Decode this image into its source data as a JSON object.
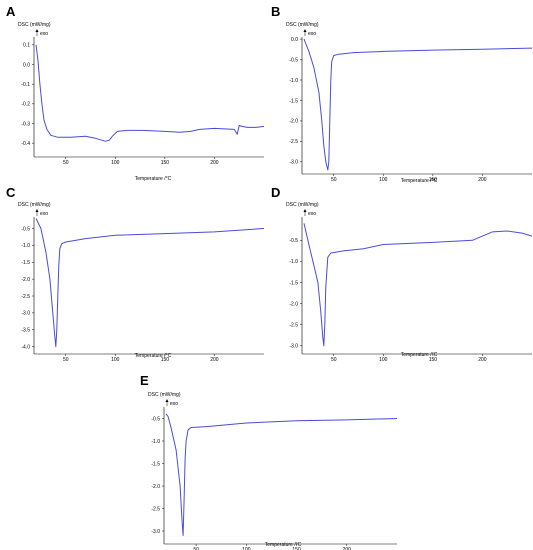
{
  "chart_data": [
    {
      "type": "line",
      "panel": "A",
      "ylabel": "DSC (mW/mg)",
      "exo_label": "exo",
      "xlabel": "Temperature /°C",
      "xlim": [
        18,
        250
      ],
      "ylim": [
        -0.45,
        0.15
      ],
      "xticks": [
        50,
        100,
        150,
        200
      ],
      "yticks": [
        0.1,
        0.0,
        -0.1,
        -0.2,
        -0.3,
        -0.4
      ],
      "ytick_labels": [
        "0.1",
        "0.0",
        "-0.1",
        "-0.2",
        "-0.3",
        "-0.4"
      ],
      "series": [
        {
          "x": [
            20,
            22,
            24,
            26,
            28,
            31,
            35,
            42,
            55,
            70,
            80,
            90,
            94,
            97,
            102,
            112,
            128,
            150,
            165,
            176,
            185,
            200,
            220,
            223,
            225,
            228,
            233,
            242,
            250
          ],
          "y": [
            0.1,
            0.02,
            -0.1,
            -0.2,
            -0.28,
            -0.33,
            -0.36,
            -0.37,
            -0.37,
            -0.365,
            -0.375,
            -0.39,
            -0.385,
            -0.365,
            -0.34,
            -0.335,
            -0.335,
            -0.34,
            -0.345,
            -0.34,
            -0.33,
            -0.325,
            -0.33,
            -0.355,
            -0.31,
            -0.315,
            -0.32,
            -0.32,
            -0.315
          ]
        }
      ]
    },
    {
      "type": "line",
      "panel": "B",
      "ylabel": "DSC (mW/mg)",
      "exo_label": "exo",
      "xlabel": "Temperature /°C",
      "xlim": [
        18,
        250
      ],
      "ylim": [
        -3.2,
        0.1
      ],
      "xticks": [
        50,
        100,
        150,
        200
      ],
      "yticks": [
        0.0,
        -0.5,
        -1.0,
        -1.5,
        -2.0,
        -2.5,
        -3.0
      ],
      "ytick_labels": [
        "0.0",
        "-0.5",
        "-1.0",
        "-1.5",
        "-2.0",
        "-2.5",
        "-3.0"
      ],
      "series": [
        {
          "x": [
            20,
            25,
            30,
            35,
            38,
            40,
            42,
            44,
            45,
            46,
            47,
            48,
            50,
            55,
            70,
            100,
            150,
            200,
            250
          ],
          "y": [
            0.0,
            -0.3,
            -0.7,
            -1.3,
            -2.0,
            -2.6,
            -3.0,
            -3.2,
            -3.0,
            -2.0,
            -1.0,
            -0.55,
            -0.4,
            -0.37,
            -0.33,
            -0.3,
            -0.27,
            -0.25,
            -0.22
          ]
        }
      ]
    },
    {
      "type": "line",
      "panel": "C",
      "ylabel": "DSC (mW/mg)",
      "exo_label": "exo",
      "xlabel": "Temperature /°C",
      "xlim": [
        18,
        250
      ],
      "ylim": [
        -4.1,
        -0.1
      ],
      "xticks": [
        50,
        100,
        150,
        200
      ],
      "yticks": [
        -0.5,
        -1.0,
        -1.5,
        -2.0,
        -2.5,
        -3.0,
        -3.5,
        -4.0
      ],
      "ytick_labels": [
        "-0.5",
        "-1.0",
        "-1.5",
        "-2.0",
        "-2.5",
        "-3.0",
        "-3.5",
        "-4.0"
      ],
      "series": [
        {
          "x": [
            20,
            25,
            30,
            34,
            37,
            39,
            40,
            41,
            42,
            43,
            44,
            46,
            50,
            70,
            100,
            150,
            200,
            250
          ],
          "y": [
            -0.2,
            -0.5,
            -1.2,
            -2.0,
            -3.0,
            -3.7,
            -4.0,
            -3.5,
            -2.5,
            -1.6,
            -1.1,
            -0.95,
            -0.9,
            -0.8,
            -0.7,
            -0.65,
            -0.6,
            -0.5
          ]
        }
      ]
    },
    {
      "type": "line",
      "panel": "D",
      "ylabel": "DSC (mW/mg)",
      "exo_label": "exo",
      "xlabel": "Temperature /°C",
      "xlim": [
        18,
        250
      ],
      "ylim": [
        -3.1,
        0.1
      ],
      "xticks": [
        50,
        100,
        150,
        200
      ],
      "yticks": [
        -0.5,
        -1.0,
        -1.5,
        -2.0,
        -2.5,
        -3.0
      ],
      "ytick_labels": [
        "-0.5",
        "-1.0",
        "-1.5",
        "-2.0",
        "-2.5",
        "-3.0"
      ],
      "series": [
        {
          "x": [
            20,
            25,
            30,
            34,
            37,
            39,
            40,
            41,
            42,
            44,
            47,
            60,
            80,
            100,
            150,
            190,
            200,
            210,
            225,
            240,
            250
          ],
          "y": [
            -0.1,
            -0.6,
            -1.1,
            -1.5,
            -2.2,
            -2.8,
            -3.0,
            -2.5,
            -1.6,
            -0.9,
            -0.8,
            -0.75,
            -0.7,
            -0.6,
            -0.55,
            -0.5,
            -0.4,
            -0.3,
            -0.28,
            -0.33,
            -0.4
          ]
        }
      ]
    },
    {
      "type": "line",
      "panel": "E",
      "ylabel": "DSC (mW/mg)",
      "exo_label": "exo",
      "xlabel": "Temperature /°C",
      "xlim": [
        18,
        250
      ],
      "ylim": [
        -3.2,
        -0.2
      ],
      "xticks": [
        50,
        100,
        150,
        200
      ],
      "yticks": [
        -0.5,
        -1.0,
        -1.5,
        -2.0,
        -2.5,
        -3.0
      ],
      "ytick_labels": [
        "-0.5",
        "-1.0",
        "-1.5",
        "-2.0",
        "-2.5",
        "-3.0"
      ],
      "series": [
        {
          "x": [
            20,
            22,
            25,
            30,
            34,
            36,
            37,
            38,
            39,
            40,
            42,
            45,
            60,
            100,
            150,
            200,
            250
          ],
          "y": [
            -0.4,
            -0.45,
            -0.7,
            -1.2,
            -2.0,
            -2.8,
            -3.1,
            -2.3,
            -1.4,
            -1.0,
            -0.75,
            -0.7,
            -0.68,
            -0.6,
            -0.55,
            -0.53,
            -0.5
          ]
        }
      ]
    }
  ]
}
